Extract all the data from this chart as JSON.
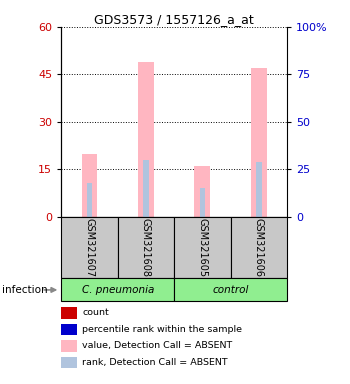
{
  "title": "GDS3573 / 1557126_a_at",
  "samples": [
    "GSM321607",
    "GSM321608",
    "GSM321605",
    "GSM321606"
  ],
  "group_label_left": "C. pneumonia",
  "group_label_right": "control",
  "group_bg_color": "#90ee90",
  "sample_bg_color": "#c8c8c8",
  "values": [
    20,
    49,
    16,
    47
  ],
  "ranks": [
    18,
    30,
    15,
    29
  ],
  "ylim_left": [
    0,
    60
  ],
  "ylim_right": [
    0,
    100
  ],
  "yticks_left": [
    0,
    15,
    30,
    45,
    60
  ],
  "yticks_right": [
    0,
    25,
    50,
    75,
    100
  ],
  "ylabel_left_color": "#cc0000",
  "ylabel_right_color": "#0000cc",
  "bar_color_value": "#ffb6c1",
  "bar_color_rank": "#b0c4de",
  "infection_label": "infection",
  "legend_items": [
    {
      "label": "count",
      "color": "#cc0000"
    },
    {
      "label": "percentile rank within the sample",
      "color": "#0000cc"
    },
    {
      "label": "value, Detection Call = ABSENT",
      "color": "#ffb6c1"
    },
    {
      "label": "rank, Detection Call = ABSENT",
      "color": "#b0c4de"
    }
  ]
}
